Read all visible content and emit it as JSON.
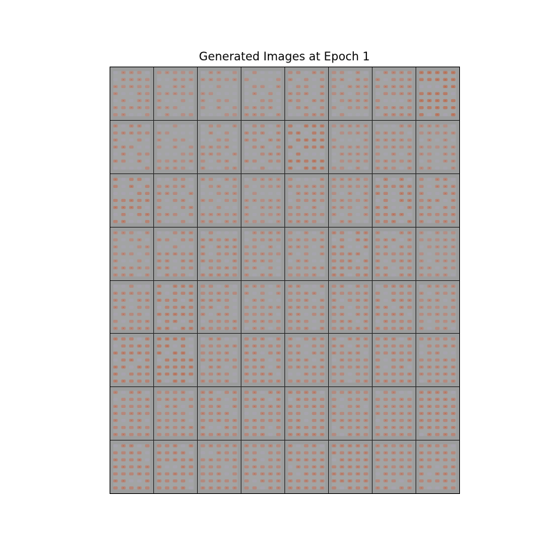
{
  "figure": {
    "title": "Generated Images at Epoch 1"
  },
  "grid": {
    "rows": 8,
    "cols": 8,
    "content": "gan-generated-samples",
    "tile_base_color": "#9c9d9d",
    "tile_light_color": "#a9aaaa",
    "pattern_color_salmon": "#c58a82",
    "pattern_color_rust": "#b9623f",
    "pattern_color_lavender": "#a9a3b4",
    "separator_color": "#1f1f1f",
    "warmth": [
      [
        0.35,
        0.3,
        0.3,
        0.35,
        0.4,
        0.35,
        0.4,
        0.7
      ],
      [
        0.4,
        0.3,
        0.35,
        0.4,
        0.65,
        0.3,
        0.35,
        0.3
      ],
      [
        0.55,
        0.4,
        0.35,
        0.3,
        0.4,
        0.35,
        0.55,
        0.45
      ],
      [
        0.35,
        0.4,
        0.4,
        0.35,
        0.35,
        0.5,
        0.4,
        0.3
      ],
      [
        0.4,
        0.55,
        0.4,
        0.35,
        0.4,
        0.4,
        0.45,
        0.35
      ],
      [
        0.55,
        0.65,
        0.4,
        0.45,
        0.4,
        0.4,
        0.45,
        0.4
      ],
      [
        0.45,
        0.4,
        0.45,
        0.45,
        0.5,
        0.4,
        0.4,
        0.5
      ],
      [
        0.5,
        0.5,
        0.4,
        0.4,
        0.45,
        0.5,
        0.4,
        0.45
      ]
    ]
  }
}
